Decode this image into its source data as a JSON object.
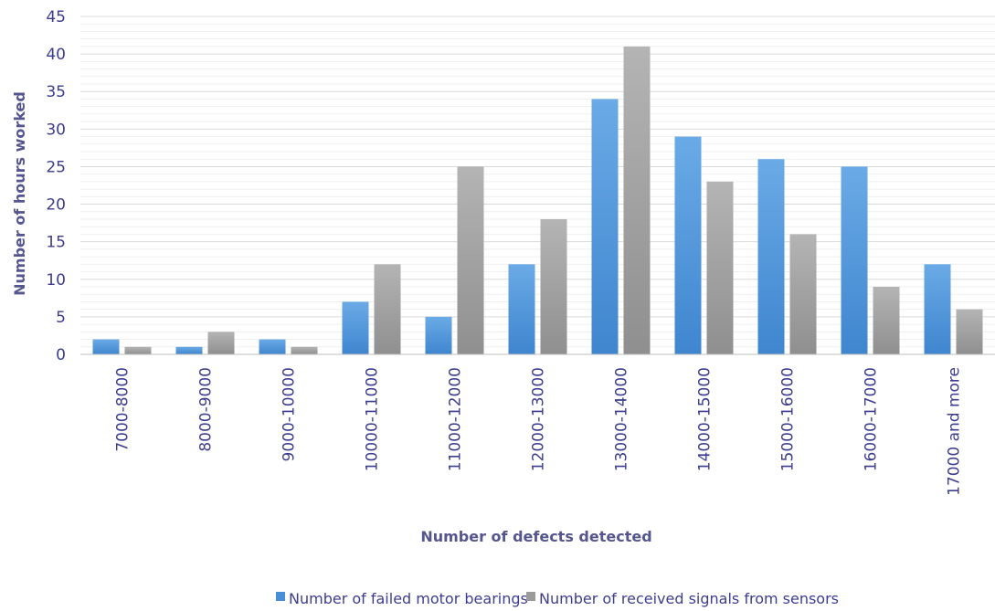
{
  "chart_data": {
    "type": "bar",
    "title": "",
    "xlabel": "Number of defects detected",
    "ylabel": "Number of hours worked",
    "ylim": [
      0,
      45
    ],
    "yticks": [
      0,
      5,
      10,
      15,
      20,
      25,
      30,
      35,
      40,
      45
    ],
    "grid": "horizontal",
    "legend_position": "bottom",
    "categories": [
      "7000-8000",
      "8000-9000",
      "9000-10000",
      "10000-11000",
      "11000-12000",
      "12000-13000",
      "13000-14000",
      "14000-15000",
      "15000-16000",
      "16000-17000",
      "17000 and more"
    ],
    "series": [
      {
        "name": "Number of failed motor bearings",
        "color": "#4a8fd6",
        "values": [
          2,
          1,
          2,
          7,
          5,
          12,
          34,
          29,
          26,
          25,
          12
        ]
      },
      {
        "name": "Number of received signals from sensors",
        "color": "#9b9b9b",
        "values": [
          1,
          3,
          1,
          12,
          25,
          18,
          41,
          23,
          16,
          9,
          6
        ]
      }
    ]
  }
}
